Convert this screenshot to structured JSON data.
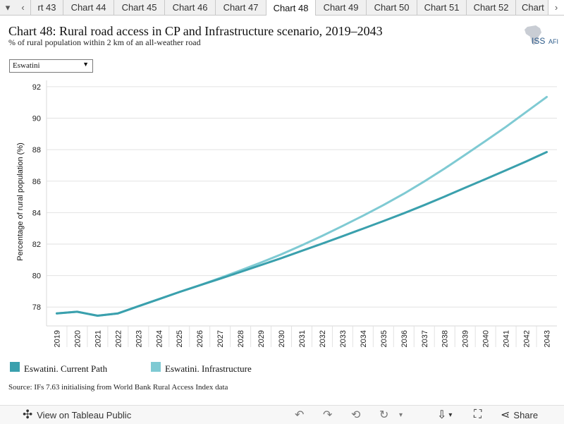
{
  "tabs": {
    "prev_arrow": "‹",
    "next_arrow": "›",
    "items": [
      {
        "label": "rt 43"
      },
      {
        "label": "Chart 44"
      },
      {
        "label": "Chart 45"
      },
      {
        "label": "Chart 46"
      },
      {
        "label": "Chart 47"
      },
      {
        "label": "Chart 48",
        "active": true
      },
      {
        "label": "Chart 49"
      },
      {
        "label": "Chart 50"
      },
      {
        "label": "Chart 51"
      },
      {
        "label": "Chart 52"
      },
      {
        "label": "Chart"
      }
    ]
  },
  "header": {
    "title": "Chart 48: Rural road access in CP and Infrastructure scenario, 2019–2043",
    "subtitle": "% of rural population within 2 km of an all-weather road",
    "logo_text": "ISS",
    "logo_suffix": "AFI"
  },
  "filter": {
    "selected": "Eswatini",
    "caret": "▼"
  },
  "chart_data": {
    "type": "line",
    "ylabel": "Percentage of rural population (%)",
    "xlabel": "",
    "x": [
      "2019",
      "2020",
      "2021",
      "2022",
      "2023",
      "2024",
      "2025",
      "2026",
      "2027",
      "2028",
      "2029",
      "2030",
      "2031",
      "2032",
      "2033",
      "2034",
      "2035",
      "2036",
      "2037",
      "2038",
      "2039",
      "2040",
      "2041",
      "2042",
      "2043"
    ],
    "ylim": [
      76.8,
      92.4
    ],
    "yticks": [
      78,
      80,
      82,
      84,
      86,
      88,
      90,
      92
    ],
    "grid": true,
    "series": [
      {
        "name": "Eswatini. Current Path",
        "color": "#3aa0ad",
        "values": [
          77.6,
          77.7,
          77.45,
          77.6,
          78.05,
          78.5,
          78.95,
          79.38,
          79.8,
          80.23,
          80.67,
          81.11,
          81.57,
          82.03,
          82.5,
          82.98,
          83.46,
          83.96,
          84.48,
          85.02,
          85.58,
          86.13,
          86.69,
          87.26,
          87.85
        ]
      },
      {
        "name": "Eswatini. Infrastructure",
        "color": "#7fcad3",
        "values": [
          77.6,
          77.7,
          77.45,
          77.6,
          78.05,
          78.5,
          78.95,
          79.38,
          79.85,
          80.33,
          80.83,
          81.35,
          81.92,
          82.52,
          83.15,
          83.8,
          84.48,
          85.2,
          85.98,
          86.8,
          87.67,
          88.55,
          89.45,
          90.4,
          91.35
        ]
      }
    ],
    "legend_position": "bottom-left"
  },
  "source": "Source: IFs 7.63 initialising from World Bank Rural Access Index data",
  "toolbar": {
    "view_label": "View on Tableau Public",
    "share_label": "Share"
  }
}
